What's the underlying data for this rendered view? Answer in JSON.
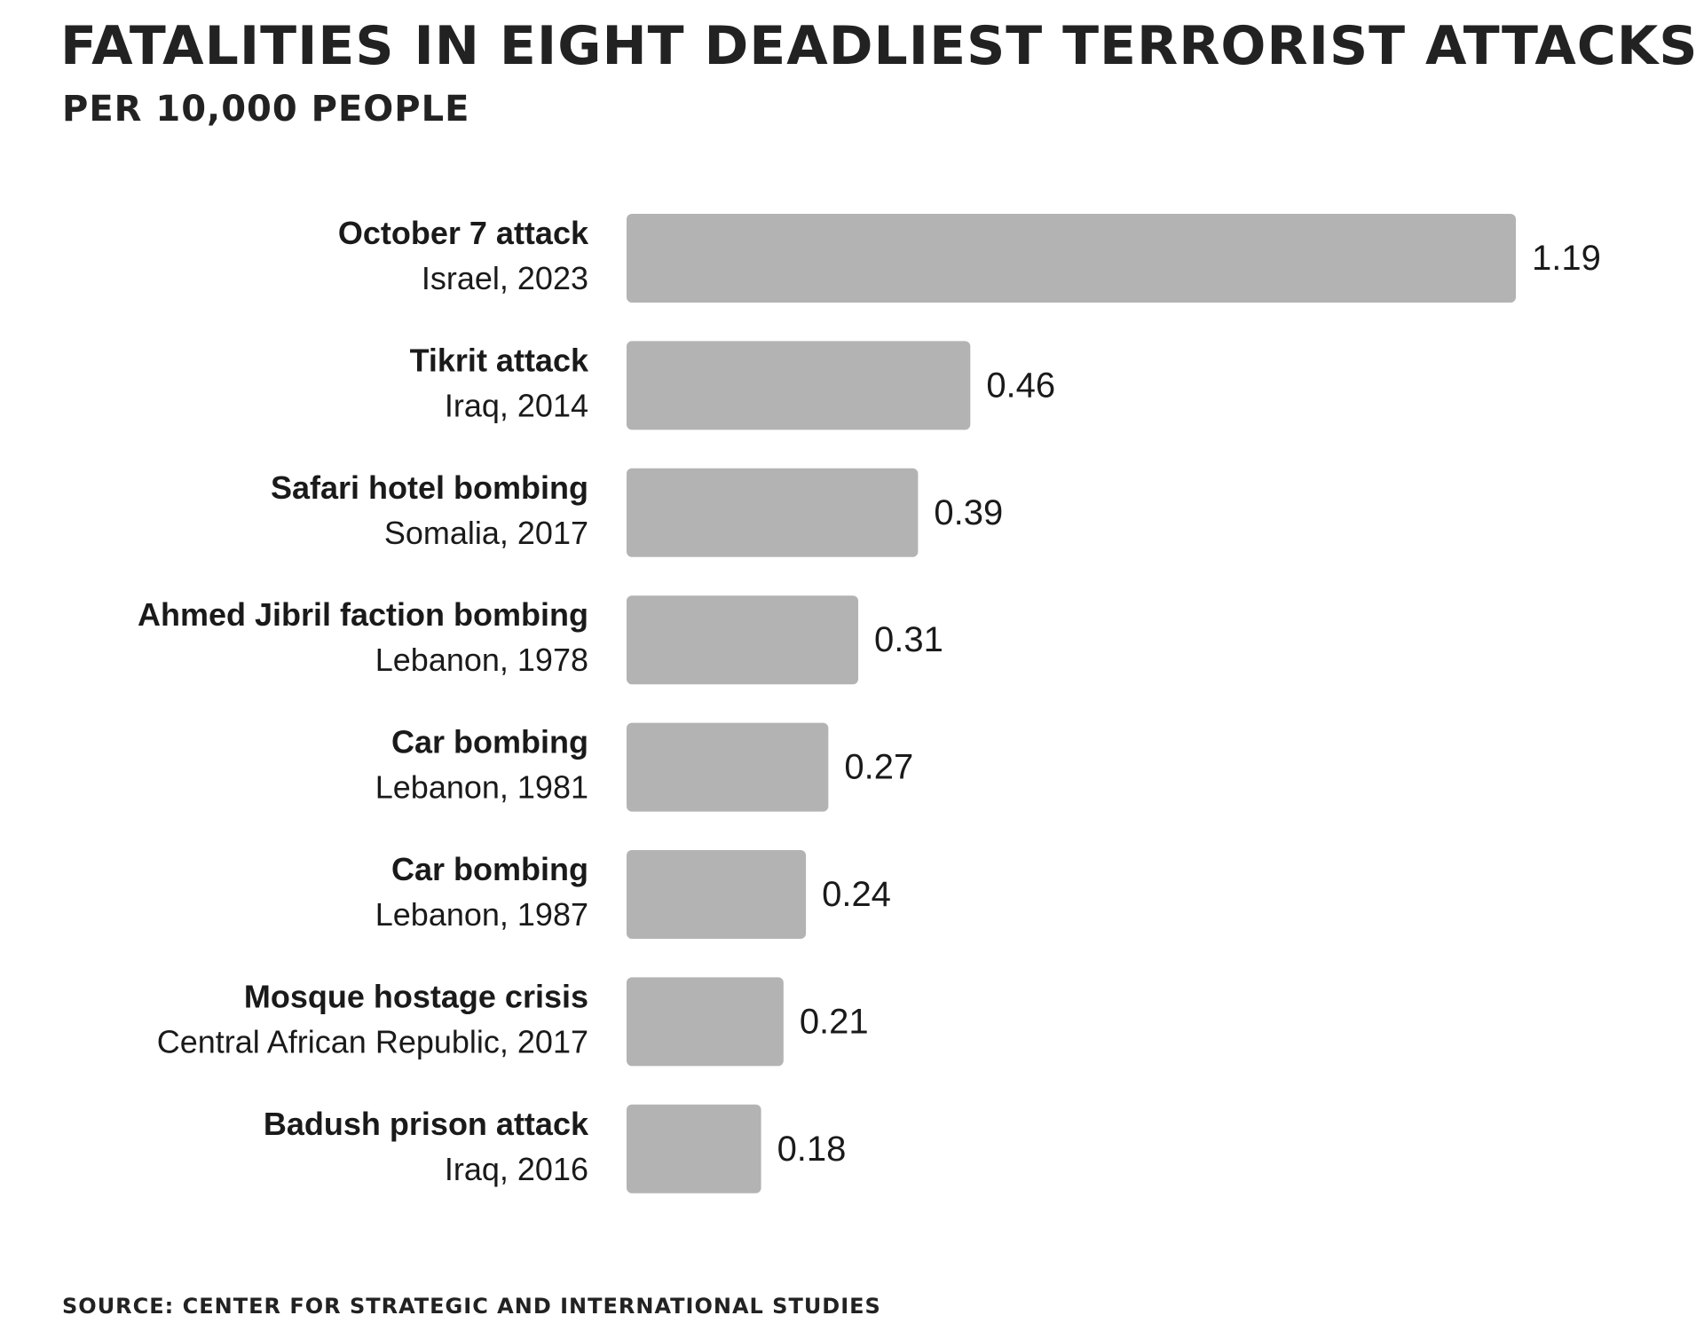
{
  "chart_data": {
    "type": "bar",
    "orientation": "horizontal",
    "title": "FATALITIES IN EIGHT DEADLIEST TERRORIST ATTACKS",
    "subtitle": "PER 10,000 PEOPLE",
    "source": "SOURCE: CENTER FOR STRATEGIC AND INTERNATIONAL STUDIES",
    "categories": [
      {
        "name": "October 7 attack",
        "detail": "Israel, 2023"
      },
      {
        "name": "Tikrit attack",
        "detail": "Iraq, 2014"
      },
      {
        "name": "Safari hotel bombing",
        "detail": "Somalia, 2017"
      },
      {
        "name": "Ahmed Jibril faction bombing",
        "detail": "Lebanon, 1978"
      },
      {
        "name": "Car bombing",
        "detail": "Lebanon, 1981"
      },
      {
        "name": "Car bombing",
        "detail": "Lebanon, 1987"
      },
      {
        "name": "Mosque hostage crisis",
        "detail": "Central African Republic, 2017"
      },
      {
        "name": "Badush prison attack",
        "detail": "Iraq, 2016"
      }
    ],
    "values": [
      1.19,
      0.46,
      0.39,
      0.31,
      0.27,
      0.24,
      0.21,
      0.18
    ],
    "value_labels": [
      "1.19",
      "0.46",
      "0.39",
      "0.31",
      "0.27",
      "0.24",
      "0.21",
      "0.18"
    ],
    "grid": false,
    "legend": "none",
    "colors": {
      "bar": "#b3b3b3",
      "text": "#1a1a1a",
      "background": "#ffffff"
    }
  }
}
